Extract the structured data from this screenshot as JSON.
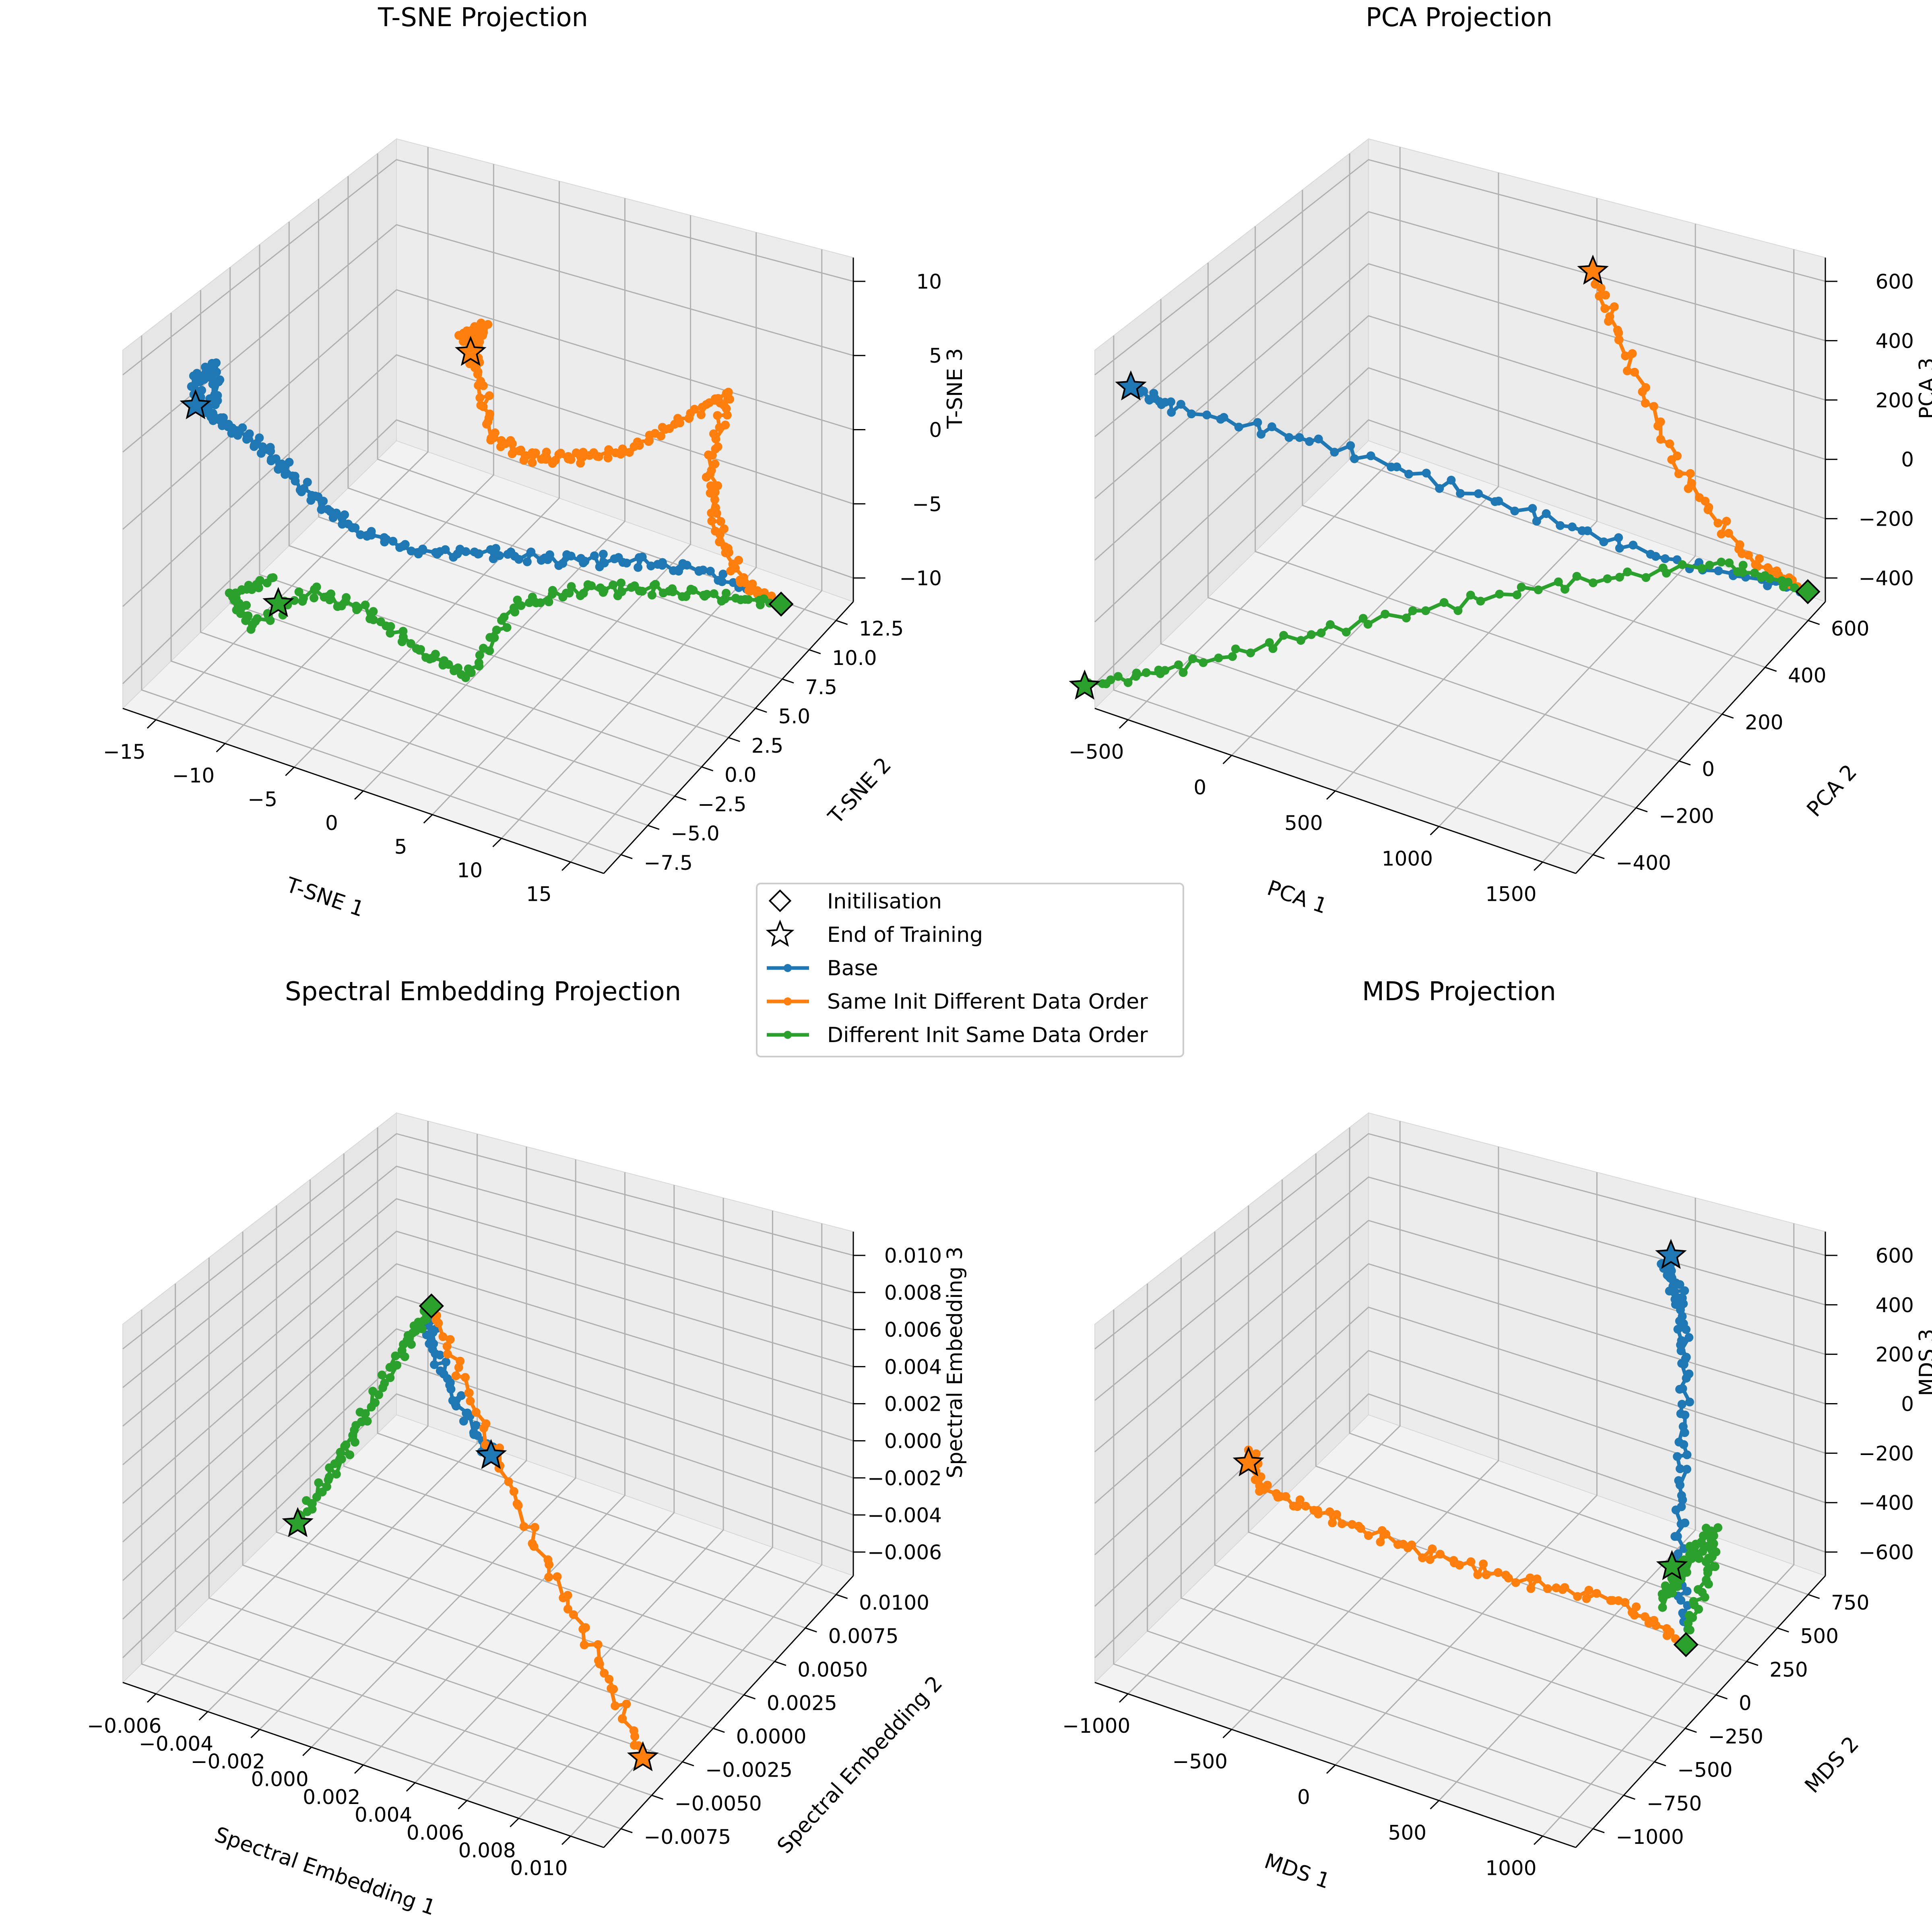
{
  "chart_data": [
    {
      "type": "line",
      "title": "T-SNE Projection",
      "xlabel": "T-SNE 1",
      "ylabel": "T-SNE 2",
      "zlabel": "T-SNE 3",
      "xticks": [
        -15,
        -10,
        -5,
        0,
        5,
        10,
        15
      ],
      "yticks": [
        -7.5,
        -5.0,
        -2.5,
        0.0,
        2.5,
        5.0,
        7.5,
        10.0,
        12.5
      ],
      "zticks": [
        -10,
        -5,
        0,
        5,
        10
      ],
      "series": [
        {
          "name": "Base",
          "color": "#1f77b4",
          "points": [
            [
              13.5,
              10.5,
              -10
            ],
            [
              11,
              7,
              -6
            ],
            [
              8,
              4,
              -4
            ],
            [
              5,
              1.5,
              -3
            ],
            [
              2,
              -0.5,
              -2
            ],
            [
              -1,
              -3,
              -1
            ],
            [
              -4,
              -5,
              1
            ],
            [
              -6,
              -6,
              3
            ],
            [
              -8,
              -6.5,
              5
            ],
            [
              -10,
              -6.5,
              6
            ],
            [
              -12,
              -7,
              7
            ],
            [
              -13,
              -7.5,
              8
            ],
            [
              -14,
              -7,
              9
            ],
            [
              -13,
              -6.5,
              10
            ],
            [
              -12.5,
              -7,
              8
            ]
          ],
          "end": [
            -13.5,
            -7.5,
            8
          ]
        },
        {
          "name": "Same Init Different Data Order",
          "color": "#ff7f0e",
          "points": [
            [
              13.5,
              10.5,
              -10
            ],
            [
              12,
              9,
              -8
            ],
            [
              11,
              8,
              -4
            ],
            [
              10.5,
              8,
              0
            ],
            [
              11,
              9,
              4
            ],
            [
              9,
              7,
              3
            ],
            [
              7,
              5,
              2
            ],
            [
              5,
              3,
              2.5
            ],
            [
              3,
              1.5,
              3
            ],
            [
              1.5,
              0,
              5
            ],
            [
              0.5,
              0,
              9
            ],
            [
              -0.5,
              0,
              11
            ],
            [
              1,
              0,
              12
            ],
            [
              0,
              0,
              10
            ]
          ],
          "end": [
            0,
            0,
            10
          ]
        },
        {
          "name": "Different Init Same Data Order",
          "color": "#2ca02c",
          "points": [
            [
              13.5,
              10.5,
              -10
            ],
            [
              10,
              8.5,
              -9
            ],
            [
              7,
              6.5,
              -8
            ],
            [
              4,
              4.5,
              -7.5
            ],
            [
              1,
              2.5,
              -8
            ],
            [
              -1,
              1,
              -12
            ],
            [
              -3,
              -0.5,
              -10
            ],
            [
              -6,
              -2,
              -7
            ],
            [
              -9,
              -3,
              -6
            ],
            [
              -12,
              -4.5,
              -8
            ],
            [
              -13,
              -5,
              -6
            ],
            [
              -11,
              -4,
              -5
            ]
          ],
          "end": [
            -10.5,
            -4,
            -6.5
          ]
        }
      ],
      "init": [
        13.5,
        10.5,
        -10
      ]
    },
    {
      "type": "line",
      "title": "PCA Projection",
      "xlabel": "PCA 1",
      "ylabel": "PCA 2",
      "zlabel": "PCA 3",
      "xticks": [
        -500,
        0,
        500,
        1000,
        1500
      ],
      "yticks": [
        -400,
        -200,
        0,
        200,
        400,
        600
      ],
      "zticks": [
        -400,
        -200,
        0,
        200,
        400,
        600
      ],
      "series": [
        {
          "name": "Base",
          "color": "#1f77b4",
          "points": [
            [
              1550,
              600,
              -400
            ],
            [
              1100,
              400,
              -250
            ],
            [
              600,
              200,
              -50
            ],
            [
              0,
              -50,
              200
            ],
            [
              -500,
              -300,
              400
            ],
            [
              -600,
              -380,
              500
            ]
          ],
          "end": [
            -600,
            -380,
            500
          ]
        },
        {
          "name": "Same Init Different Data Order",
          "color": "#ff7f0e",
          "points": [
            [
              1550,
              600,
              -400
            ],
            [
              1300,
              550,
              -300
            ],
            [
              1050,
              500,
              -50
            ],
            [
              800,
              480,
              300
            ],
            [
              650,
              480,
              520
            ]
          ],
          "end": [
            650,
            480,
            520
          ]
        },
        {
          "name": "Different Init Same Data Order",
          "color": "#2ca02c",
          "points": [
            [
              1550,
              600,
              -400
            ],
            [
              1200,
              550,
              -350
            ],
            [
              600,
              300,
              -380
            ],
            [
              0,
              0,
              -420
            ],
            [
              -500,
              -250,
              -480
            ],
            [
              -800,
              -400,
              -500
            ]
          ],
          "end": [
            -800,
            -400,
            -500
          ]
        }
      ],
      "init": [
        1550,
        600,
        -400
      ]
    },
    {
      "type": "line",
      "title": "Spectral Embedding Projection",
      "xlabel": "Spectral Embedding 1",
      "ylabel": "Spectral Embedding 2",
      "zlabel": "Spectral Embedding 3",
      "xticks": [
        -0.006,
        -0.004,
        -0.002,
        0.0,
        0.002,
        0.004,
        0.006,
        0.008,
        0.01
      ],
      "yticks": [
        -0.0075,
        -0.005,
        -0.0025,
        0.0,
        0.0025,
        0.005,
        0.0075,
        0.01
      ],
      "zticks": [
        -0.006,
        -0.004,
        -0.002,
        0.0,
        0.002,
        0.004,
        0.006,
        0.008,
        0.01
      ],
      "series": [
        {
          "name": "Base",
          "color": "#1f77b4",
          "points": [
            [
              0,
              0,
              0.0095
            ],
            [
              0,
              0,
              0.0075
            ],
            [
              0.0005,
              0.001,
              0.004
            ],
            [
              0.001,
              0.0025,
              0.0005
            ]
          ],
          "end": [
            0.001,
            0.0025,
            0.0005
          ]
        },
        {
          "name": "Same Init Different Data Order",
          "color": "#ff7f0e",
          "points": [
            [
              0,
              0,
              0.0095
            ],
            [
              0.002,
              -0.0008,
              0.006
            ],
            [
              0.005,
              -0.002,
              0.001
            ],
            [
              0.008,
              -0.003,
              -0.003
            ],
            [
              0.0105,
              -0.0045,
              -0.006
            ]
          ],
          "end": [
            0.0105,
            -0.0045,
            -0.006
          ]
        },
        {
          "name": "Different Init Same Data Order",
          "color": "#2ca02c",
          "points": [
            [
              0,
              0,
              0.0095
            ],
            [
              -0.001,
              0,
              0.007
            ],
            [
              -0.003,
              0.001,
              0.002
            ],
            [
              -0.0045,
              0.0015,
              -0.002
            ],
            [
              -0.0062,
              0.002,
              -0.006
            ]
          ],
          "end": [
            -0.0062,
            0.002,
            -0.006
          ]
        }
      ],
      "init": [
        0,
        0,
        0.0095
      ]
    },
    {
      "type": "line",
      "title": "MDS Projection",
      "xlabel": "MDS 1",
      "ylabel": "MDS 2",
      "zlabel": "MDS 3",
      "xticks": [
        -1000,
        -500,
        0,
        500,
        1000
      ],
      "yticks": [
        -1000,
        -750,
        -500,
        -250,
        0,
        250,
        500,
        750
      ],
      "zticks": [
        -600,
        -400,
        -200,
        0,
        200,
        400,
        600
      ],
      "series": [
        {
          "name": "Base",
          "color": "#1f77b4",
          "points": [
            [
              950,
              0,
              -500
            ],
            [
              850,
              100,
              -300
            ],
            [
              800,
              200,
              0
            ],
            [
              750,
              300,
              300
            ],
            [
              700,
              350,
              500
            ],
            [
              650,
              300,
              700
            ],
            [
              700,
              350,
              550
            ]
          ],
          "end": [
            650,
            350,
            700
          ]
        },
        {
          "name": "Same Init Different Data Order",
          "color": "#ff7f0e",
          "points": [
            [
              950,
              0,
              -550
            ],
            [
              700,
              -100,
              -400
            ],
            [
              300,
              -250,
              -350
            ],
            [
              -100,
              -350,
              -300
            ],
            [
              -500,
              -400,
              -250
            ],
            [
              -800,
              -450,
              -200
            ],
            [
              -900,
              -400,
              -100
            ]
          ],
          "end": [
            -900,
            -400,
            -150
          ]
        },
        {
          "name": "Different Init Same Data Order",
          "color": "#2ca02c",
          "points": [
            [
              950,
              0,
              -500
            ],
            [
              1000,
              100,
              -300
            ],
            [
              950,
              200,
              -200
            ],
            [
              850,
              150,
              -350
            ],
            [
              800,
              50,
              -450
            ],
            [
              900,
              150,
              -250
            ]
          ],
          "end": [
            850,
            50,
            -300
          ]
        }
      ],
      "init": [
        950,
        0,
        -550
      ]
    }
  ],
  "legend": {
    "placement": "center",
    "entries": [
      {
        "label": "Initilisation",
        "marker": "diamond-open"
      },
      {
        "label": "End of Training",
        "marker": "star-open"
      },
      {
        "label": "Base",
        "marker": "line",
        "color": "#1f77b4"
      },
      {
        "label": "Same Init Different Data Order",
        "marker": "line",
        "color": "#ff7f0e"
      },
      {
        "label": "Different Init Same Data Order",
        "marker": "line",
        "color": "#2ca02c"
      }
    ]
  }
}
